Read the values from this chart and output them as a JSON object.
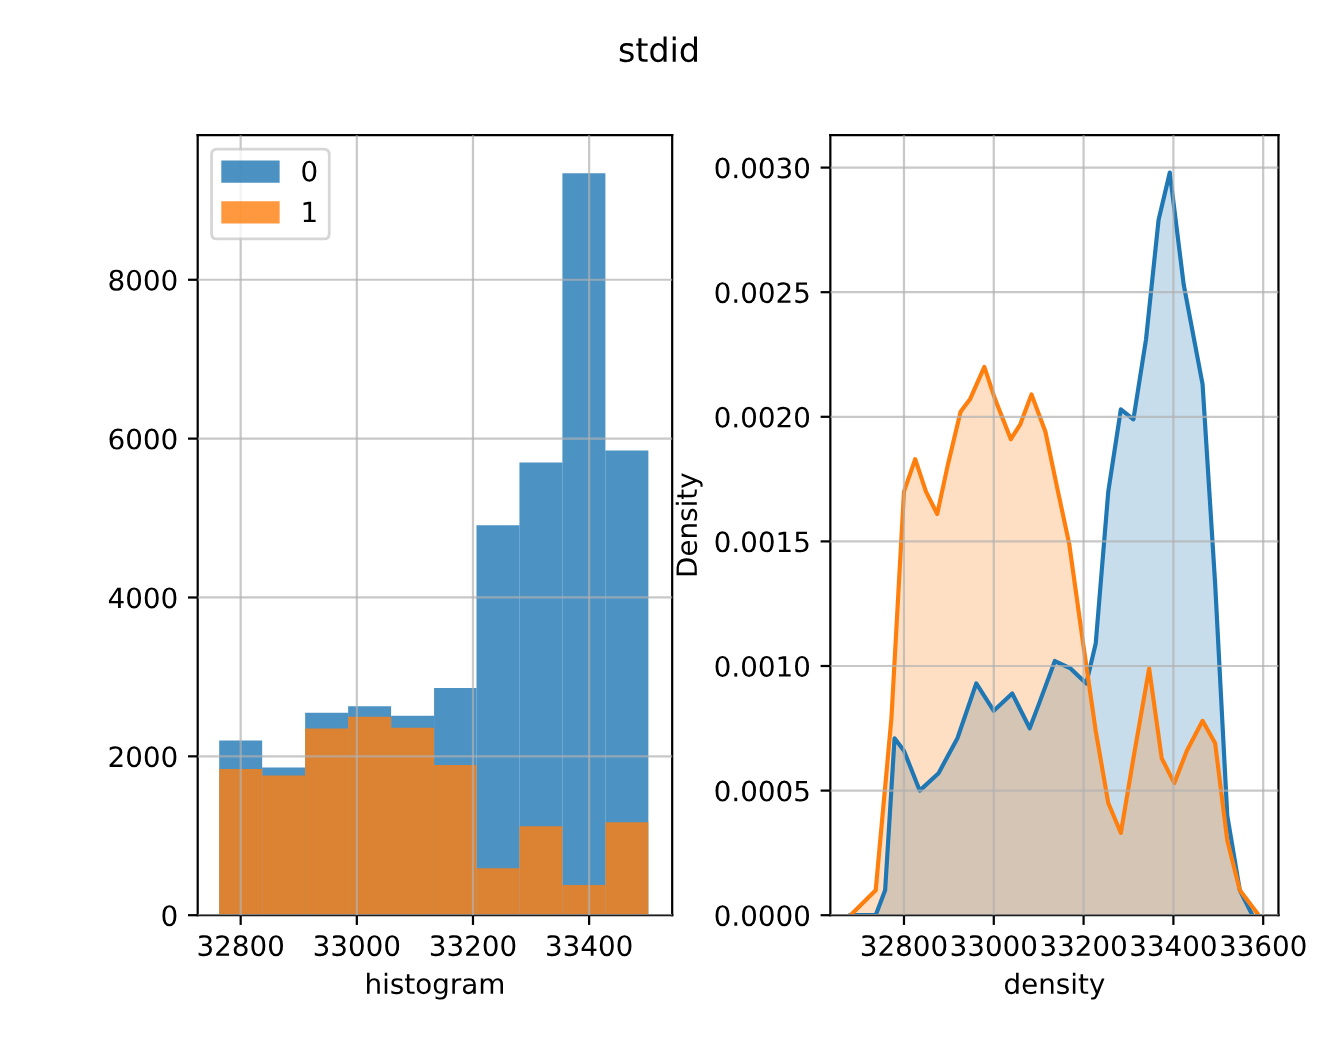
{
  "chart_data": [
    {
      "type": "histogram",
      "title": "stdid",
      "xlabel": "histogram",
      "xlim": [
        32726,
        33543
      ],
      "xticks": [
        32800,
        33000,
        33200,
        33400
      ],
      "ylim": [
        0,
        9820
      ],
      "yticks": [
        0,
        2000,
        4000,
        6000,
        8000
      ],
      "grid": true,
      "legend": "top left",
      "bins": [
        32763,
        32837,
        32911,
        32985,
        33059,
        33133,
        33206,
        33280,
        33354,
        33428,
        33502
      ],
      "series": [
        {
          "name": "0",
          "color": "#1f77b4",
          "values": [
            2200,
            1860,
            2550,
            2630,
            2510,
            2860,
            4910,
            5700,
            9340,
            5850
          ]
        },
        {
          "name": "1",
          "color": "#ff7f0e",
          "values": [
            1840,
            1760,
            2350,
            2500,
            2360,
            1890,
            590,
            1120,
            380,
            1170
          ]
        }
      ]
    },
    {
      "type": "area",
      "xlabel": "density",
      "ylabel": "Density",
      "xlim": [
        32636,
        33634
      ],
      "xticks": [
        32800,
        33000,
        33200,
        33400,
        33600
      ],
      "ylim": [
        0,
        0.00313
      ],
      "yticks": [
        {
          "value": 0,
          "label": "0.0000"
        },
        {
          "value": 0.0005,
          "label": "0.0005"
        },
        {
          "value": 0.001,
          "label": "0.0010"
        },
        {
          "value": 0.0015,
          "label": "0.0015"
        },
        {
          "value": 0.002,
          "label": "0.0020"
        },
        {
          "value": 0.0025,
          "label": "0.0025"
        },
        {
          "value": 0.003,
          "label": "0.0030"
        }
      ],
      "grid": true,
      "series": [
        {
          "color": "#1f77b4",
          "x": [
            32681,
            32737,
            32758,
            32779,
            32800,
            32835,
            32877,
            32919,
            32961,
            33000,
            33041,
            33080,
            33101,
            33136,
            33171,
            33206,
            33227,
            33255,
            33283,
            33311,
            33339,
            33367,
            33392,
            33423,
            33465,
            33493,
            33520,
            33548,
            33576
          ],
          "values": [
            0,
            0,
            0.0001,
            0.00071,
            0.00066,
            0.0005,
            0.00057,
            0.00071,
            0.00093,
            0.00082,
            0.00089,
            0.00075,
            0.00085,
            0.00102,
            0.00099,
            0.00093,
            0.00109,
            0.0017,
            0.00203,
            0.00199,
            0.00231,
            0.00279,
            0.00298,
            0.00253,
            0.00213,
            0.00133,
            0.0004,
            0.0001,
            0
          ]
        },
        {
          "color": "#ff7f0e",
          "x": [
            32681,
            32737,
            32772,
            32800,
            32825,
            32849,
            32874,
            32898,
            32926,
            32947,
            32979,
            33003,
            33038,
            33059,
            33084,
            33115,
            33143,
            33168,
            33199,
            33227,
            33255,
            33283,
            33311,
            33346,
            33374,
            33402,
            33430,
            33465,
            33493,
            33520,
            33548,
            33590
          ],
          "values": [
            0,
            0.0001,
            0.00079,
            0.0017,
            0.00183,
            0.0017,
            0.00161,
            0.00181,
            0.00202,
            0.00207,
            0.0022,
            0.00207,
            0.00191,
            0.00197,
            0.00209,
            0.00194,
            0.0017,
            0.00149,
            0.00109,
            0.00074,
            0.00045,
            0.00033,
            0.00063,
            0.00099,
            0.00063,
            0.00053,
            0.00066,
            0.00078,
            0.00069,
            0.0003,
            0.0001,
            0
          ]
        }
      ]
    }
  ]
}
